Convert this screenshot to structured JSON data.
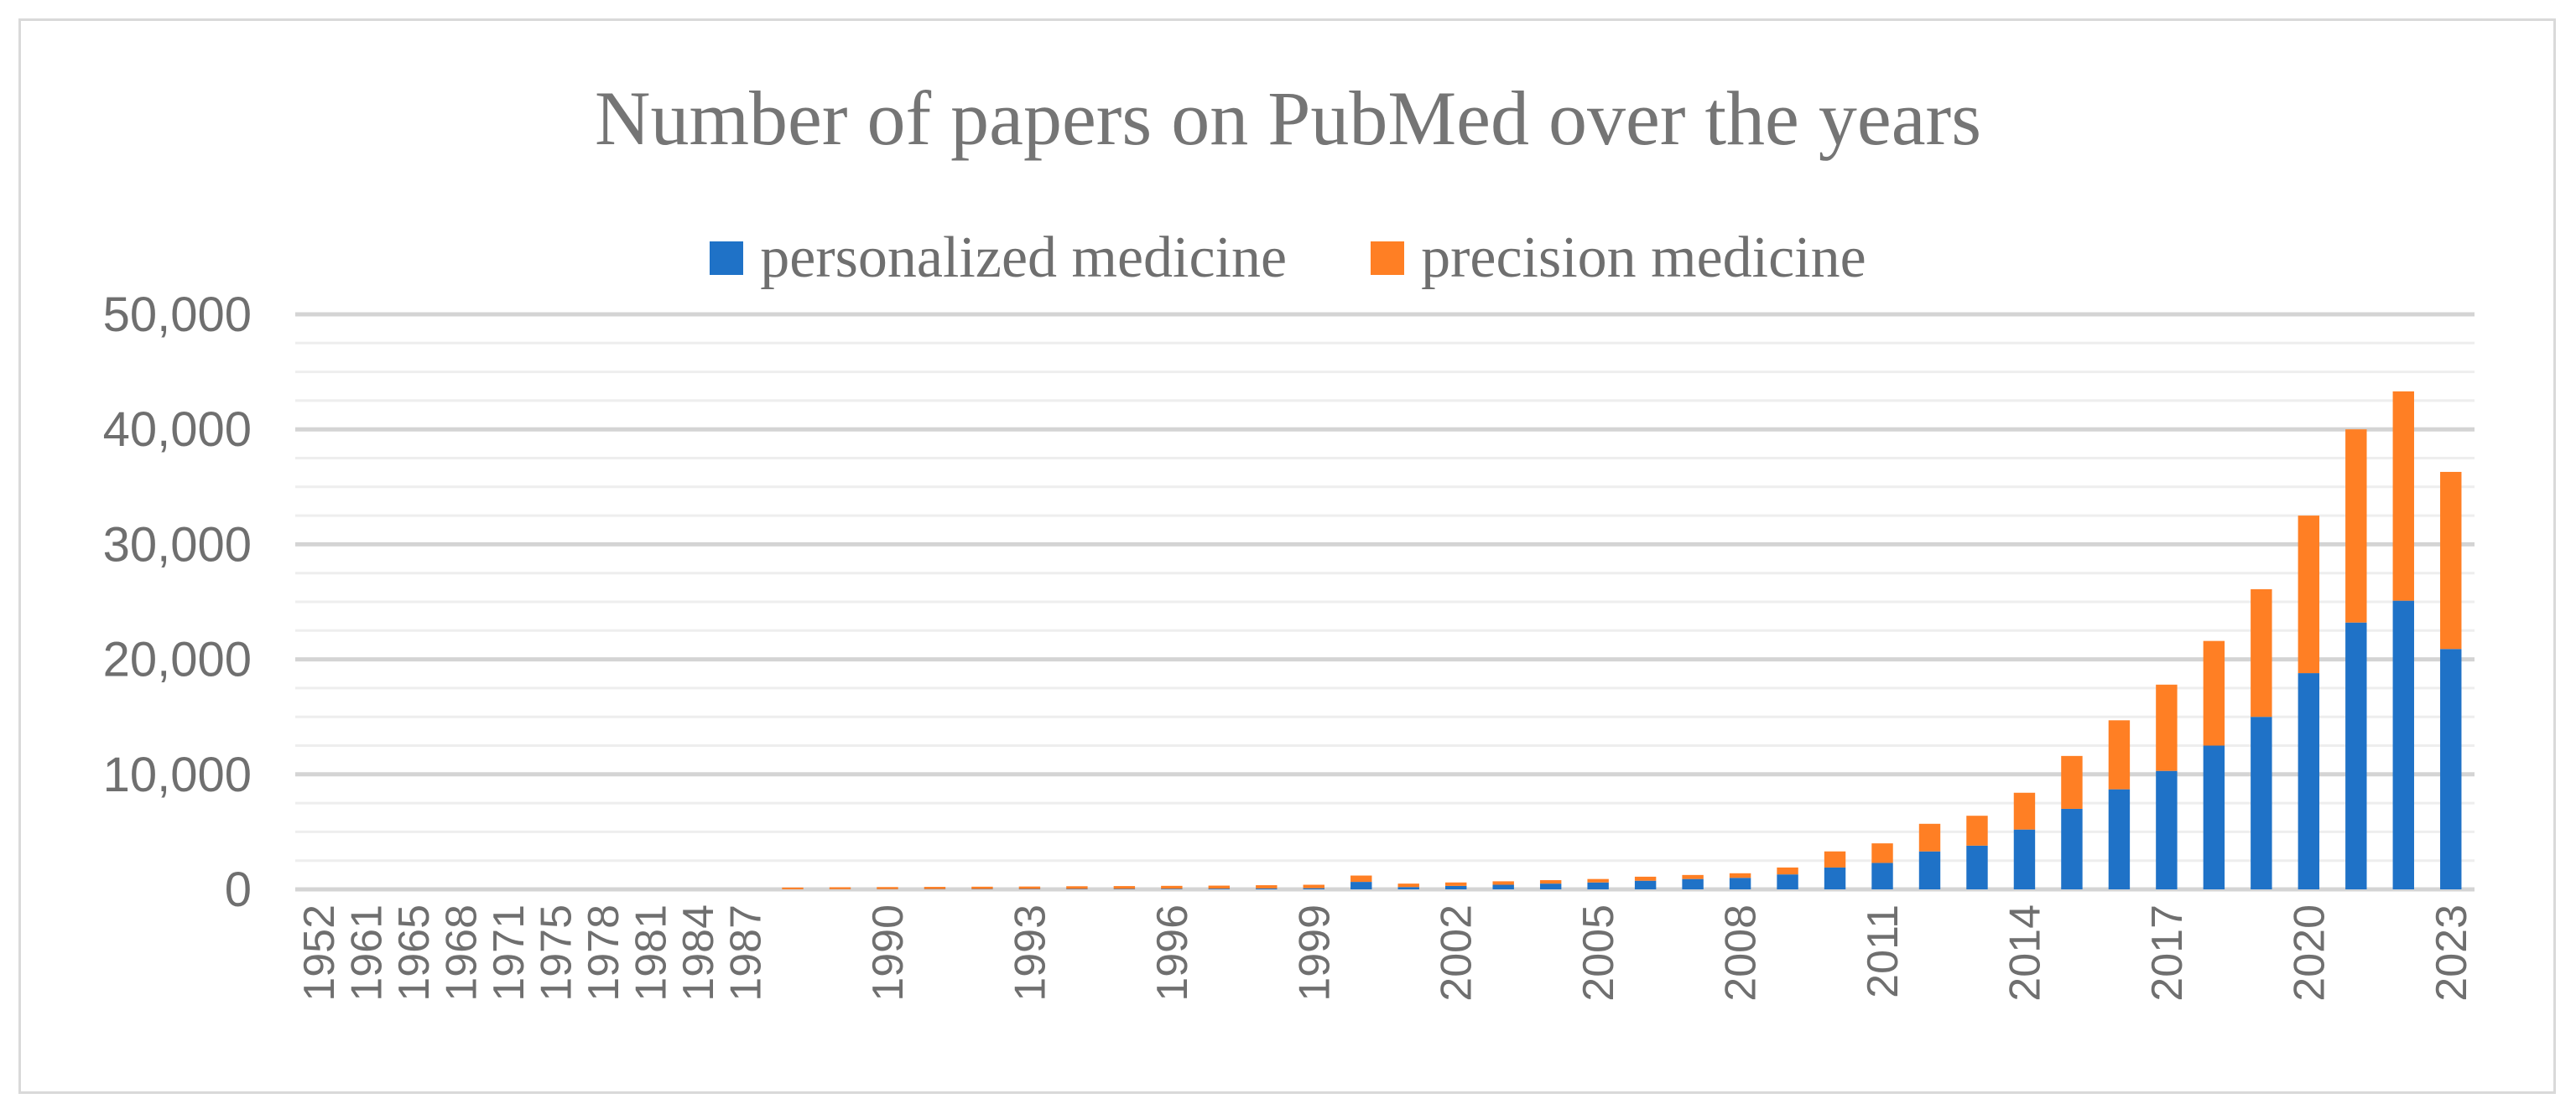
{
  "chart_data": {
    "type": "bar",
    "stacked": true,
    "title": "Number of papers on PubMed over the years",
    "xlabel": "",
    "ylabel": "",
    "ylim": [
      0,
      50000
    ],
    "yticks": [
      0,
      10000,
      20000,
      30000,
      40000,
      50000
    ],
    "ytick_labels": [
      "0",
      "10,000",
      "20,000",
      "30,000",
      "40,000",
      "50,000"
    ],
    "grid": true,
    "legend_position": "top",
    "categories": [
      "1952",
      "1961",
      "1965",
      "1968",
      "1971",
      "1975",
      "1978",
      "1981",
      "1984",
      "1987",
      "1988",
      "1989",
      "1990",
      "1991",
      "1992",
      "1993",
      "1994",
      "1995",
      "1996",
      "1997",
      "1998",
      "1999",
      "2000",
      "2001",
      "2002",
      "2003",
      "2004",
      "2005",
      "2006",
      "2007",
      "2008",
      "2009",
      "2010",
      "2011",
      "2012",
      "2013",
      "2014",
      "2015",
      "2016",
      "2017",
      "2018",
      "2019",
      "2020",
      "2021",
      "2022",
      "2023"
    ],
    "x_tick_labels_shown": [
      "1952",
      "1961",
      "1965",
      "1968",
      "1971",
      "1975",
      "1978",
      "1981",
      "1984",
      "1987",
      "1990",
      "1993",
      "1996",
      "1999",
      "2002",
      "2005",
      "2008",
      "2011",
      "2014",
      "2017",
      "2020",
      "2023"
    ],
    "series": [
      {
        "name": "personalized medicine",
        "color": "#1f72c7",
        "values": [
          0,
          0,
          0,
          0,
          0,
          0,
          0,
          0,
          0,
          0,
          10,
          15,
          20,
          25,
          30,
          35,
          40,
          45,
          55,
          65,
          80,
          100,
          650,
          200,
          300,
          400,
          500,
          600,
          750,
          900,
          1000,
          1300,
          1900,
          2300,
          3300,
          3800,
          5200,
          7000,
          8700,
          10300,
          12500,
          15000,
          18800,
          23200,
          25100,
          20900
        ]
      },
      {
        "name": "precision medicine",
        "color": "#ff7f24",
        "values": [
          0,
          0,
          0,
          0,
          0,
          0,
          0,
          0,
          0,
          0,
          150,
          170,
          180,
          190,
          200,
          210,
          230,
          240,
          250,
          260,
          280,
          300,
          550,
          300,
          300,
          300,
          300,
          300,
          350,
          350,
          400,
          600,
          1400,
          1700,
          2400,
          2600,
          3200,
          4600,
          6000,
          7500,
          9100,
          11100,
          13700,
          16800,
          18200,
          15400
        ]
      }
    ]
  }
}
